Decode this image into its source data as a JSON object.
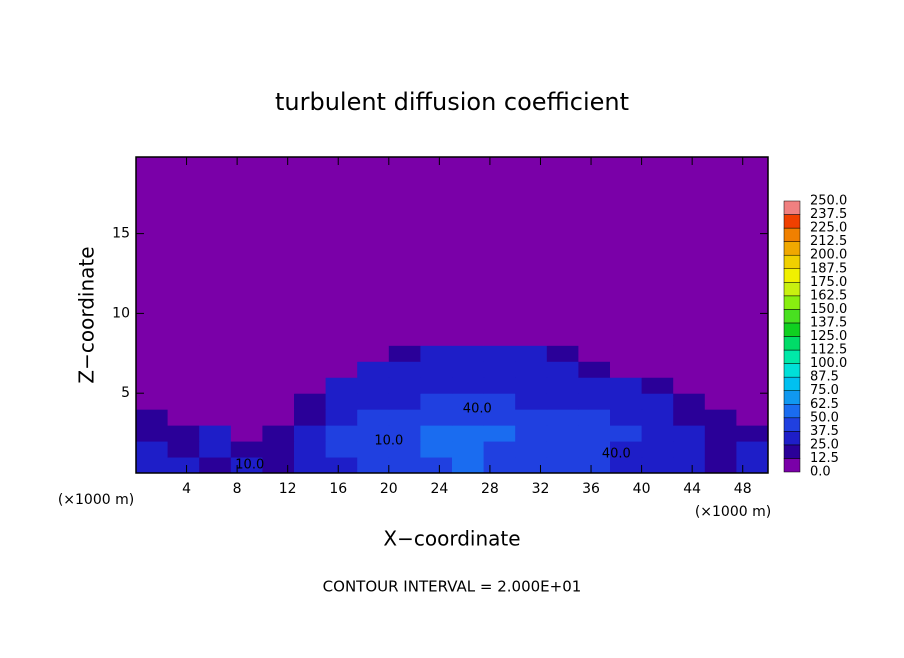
{
  "chart_data": {
    "type": "heatmap",
    "title": "turbulent diffusion coefficient",
    "xlabel": "X−coordinate",
    "ylabel": "Z−coordinate",
    "x_unit": "(×1000 m)",
    "footnote": "CONTOUR INTERVAL = 2.000E+01",
    "xlim": [
      0,
      50
    ],
    "ylim": [
      0,
      19.8
    ],
    "xticks": [
      4,
      8,
      12,
      16,
      20,
      24,
      28,
      32,
      36,
      40,
      44,
      48
    ],
    "yticks": [
      5,
      10,
      15
    ],
    "x_edges": [
      0,
      2.5,
      5,
      7.5,
      10,
      12.5,
      15,
      17.5,
      20,
      22.5,
      25,
      27.5,
      30,
      32.5,
      35,
      37.5,
      40,
      42.5,
      45,
      47.5,
      50
    ],
    "z_edges": [
      0,
      1,
      2,
      3,
      4,
      5,
      6,
      7,
      8,
      9
    ],
    "values": [
      [
        30,
        25,
        20,
        35,
        15,
        30,
        35,
        40,
        40,
        45,
        60,
        45,
        40,
        45,
        40,
        35,
        30,
        25,
        20,
        25
      ],
      [
        25,
        20,
        30,
        15,
        20,
        35,
        40,
        45,
        40,
        50,
        55,
        45,
        40,
        45,
        40,
        35,
        30,
        25,
        20,
        30
      ],
      [
        20,
        15,
        25,
        10,
        15,
        30,
        40,
        40,
        45,
        50,
        50,
        50,
        45,
        45,
        40,
        40,
        30,
        25,
        20,
        20
      ],
      [
        15,
        10,
        10,
        5,
        5,
        20,
        35,
        40,
        40,
        45,
        45,
        45,
        40,
        40,
        40,
        35,
        30,
        20,
        15,
        10
      ],
      [
        10,
        5,
        5,
        5,
        5,
        15,
        30,
        35,
        35,
        40,
        40,
        40,
        35,
        35,
        35,
        30,
        25,
        15,
        10,
        5
      ],
      [
        5,
        0,
        5,
        0,
        0,
        5,
        25,
        30,
        30,
        35,
        35,
        35,
        30,
        30,
        30,
        25,
        15,
        5,
        0,
        0
      ],
      [
        0,
        0,
        0,
        0,
        0,
        0,
        10,
        25,
        30,
        30,
        35,
        35,
        30,
        25,
        20,
        10,
        5,
        0,
        0,
        0
      ],
      [
        0,
        0,
        0,
        0,
        0,
        0,
        0,
        5,
        15,
        25,
        25,
        25,
        25,
        15,
        5,
        0,
        0,
        0,
        0,
        0
      ],
      [
        0,
        0,
        0,
        0,
        0,
        0,
        0,
        0,
        0,
        5,
        10,
        10,
        5,
        0,
        0,
        0,
        0,
        0,
        0,
        0
      ]
    ],
    "annotations": [
      {
        "text": "40.0",
        "x": 27,
        "z": 4
      },
      {
        "text": "10.0",
        "x": 20,
        "z": 2
      },
      {
        "text": "40.0",
        "x": 38,
        "z": 1.2
      },
      {
        "text": "10.0",
        "x": 9,
        "z": 0.5
      }
    ],
    "colorbar": {
      "levels": [
        {
          "value": 0,
          "label": "0.0"
        },
        12.5,
        {
          "value": 25,
          "label": "25.0"
        },
        37.5,
        {
          "value": 50,
          "label": "50.0"
        },
        62.5,
        {
          "value": 75,
          "label": "75.0"
        },
        87.5,
        {
          "value": 100,
          "label": "100.0"
        },
        112.5,
        {
          "value": 125,
          "label": "125.0"
        },
        137.5,
        {
          "value": 150,
          "label": "150.0"
        },
        162.5,
        {
          "value": 175,
          "label": "175.0"
        },
        187.5,
        {
          "value": 200,
          "label": "200.0"
        },
        212.5,
        {
          "value": 225,
          "label": "225.0"
        },
        237.5,
        {
          "value": 250,
          "label": "250.0"
        }
      ],
      "colors": [
        "#7a00a8",
        "#2a0098",
        "#1e1ec8",
        "#2040e0",
        "#1a6cf0",
        "#1098f0",
        "#00c0f0",
        "#00e0d8",
        "#00e8a8",
        "#00dc68",
        "#10d020",
        "#48e020",
        "#88ee10",
        "#c8f010",
        "#f0f000",
        "#f0d000",
        "#f0a800",
        "#f08000",
        "#f04000",
        "#f08080"
      ]
    }
  }
}
